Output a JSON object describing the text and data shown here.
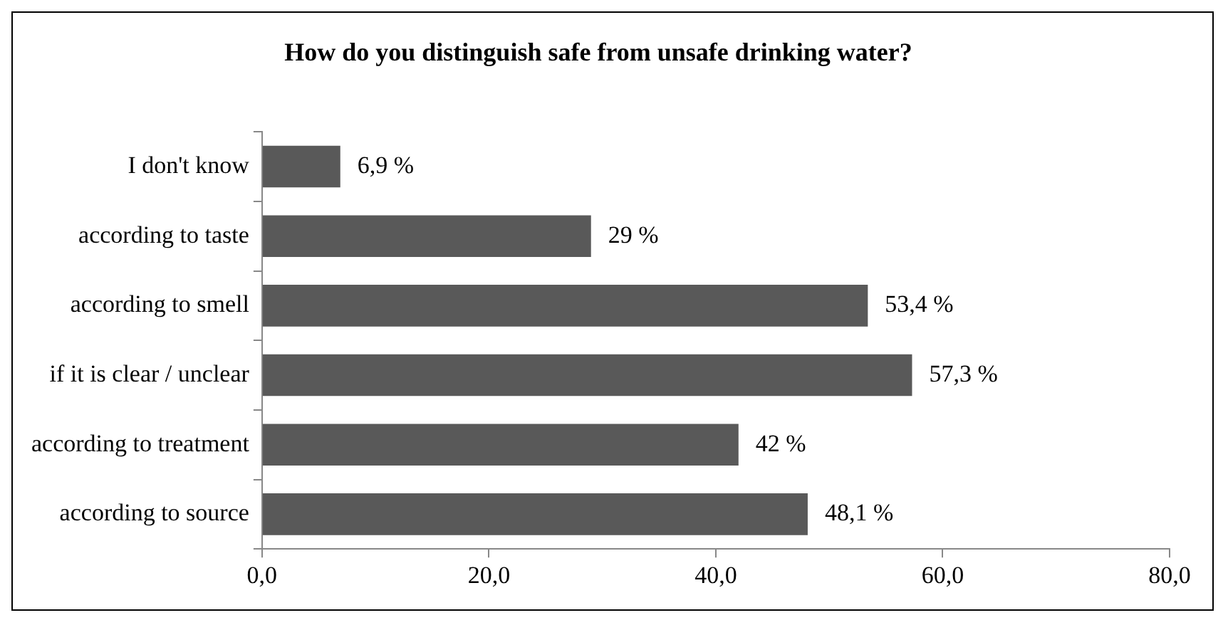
{
  "chart_data": {
    "type": "bar",
    "orientation": "horizontal",
    "title": "How do you distinguish safe from unsafe drinking water?",
    "categories": [
      "I don't know",
      "according to taste",
      "according to smell",
      "if it is clear / unclear",
      "according to treatment",
      "according to source"
    ],
    "values": [
      6.9,
      29,
      53.4,
      57.3,
      42,
      48.1
    ],
    "value_labels": [
      "6,9 %",
      "29 %",
      "53,4 %",
      "57,3 %",
      "42 %",
      "48,1 %"
    ],
    "color": "#595959",
    "xlim": [
      0,
      80
    ],
    "xticks": [
      {
        "value": 0,
        "label": "0,0"
      },
      {
        "value": 20,
        "label": "20,0"
      },
      {
        "value": 40,
        "label": "40,0"
      },
      {
        "value": 60,
        "label": "60,0"
      },
      {
        "value": 80,
        "label": "80,0"
      }
    ],
    "legend": false
  }
}
